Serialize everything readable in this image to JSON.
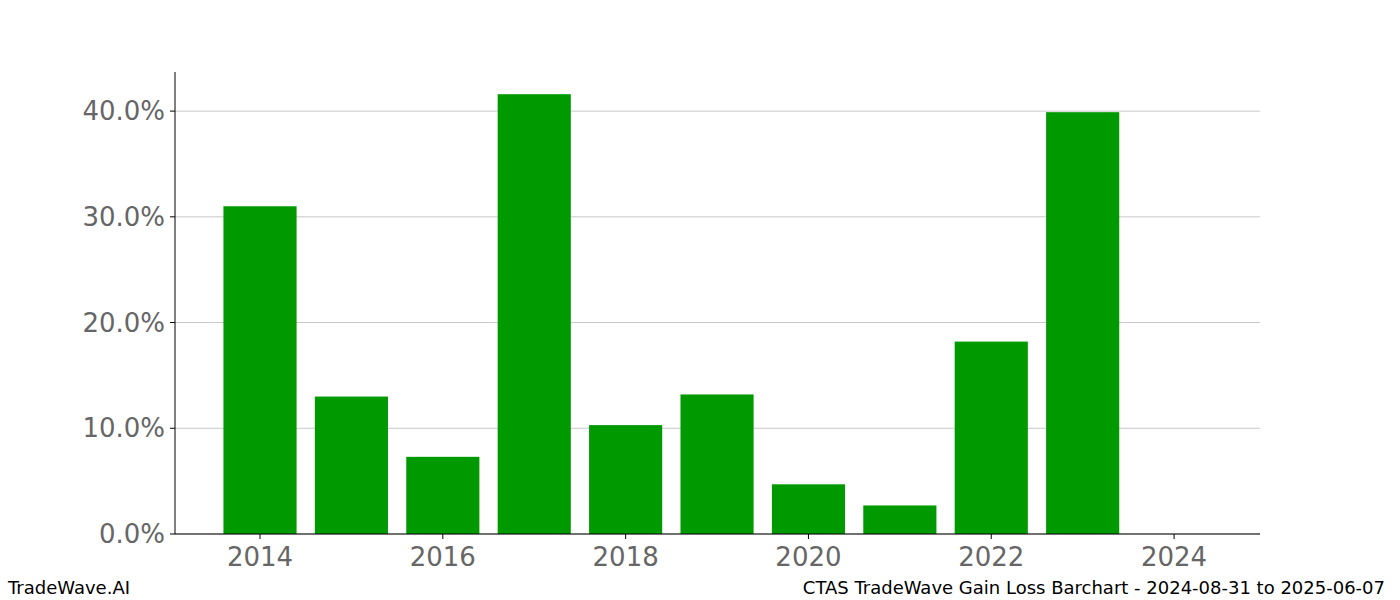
{
  "chart_data": {
    "type": "bar",
    "title": "CTAS TradeWave Gain Loss Barchart - 2024-08-31 to 2025-06-07",
    "annotations": [
      "TradeWave.AI"
    ],
    "x": [
      2014,
      2015,
      2016,
      2017,
      2018,
      2019,
      2020,
      2021,
      2022,
      2023,
      2024
    ],
    "values": [
      31.0,
      13.0,
      7.3,
      41.6,
      10.3,
      13.2,
      4.7,
      2.7,
      18.2,
      39.9,
      null
    ],
    "color": "#009900",
    "xlim": [
      2013.07,
      2024.94
    ],
    "xticks": [
      2014,
      2016,
      2018,
      2020,
      2022,
      2024
    ],
    "ylim": [
      0,
      43.7
    ],
    "yticks": [
      {
        "value": 0,
        "label": "0.0%"
      },
      {
        "value": 10,
        "label": "10.0%"
      },
      {
        "value": 20,
        "label": "20.0%"
      },
      {
        "value": 30,
        "label": "30.0%"
      },
      {
        "value": 40,
        "label": "40.0%"
      }
    ],
    "grid": true
  }
}
